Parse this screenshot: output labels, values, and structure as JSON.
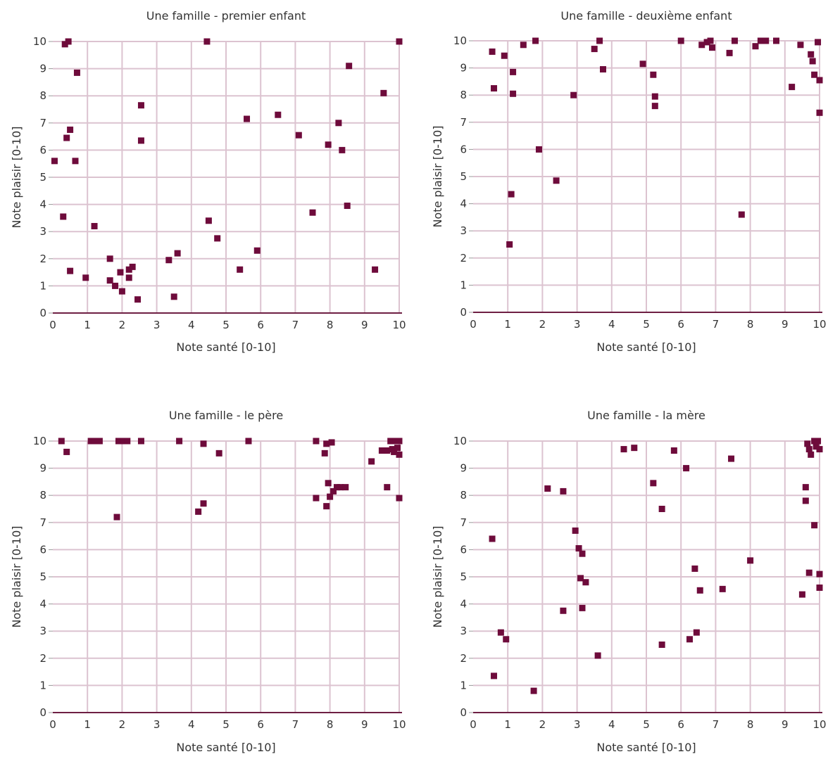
{
  "chart_data": [
    {
      "type": "scatter",
      "title": "Une famille - premier enfant",
      "xlabel": "Note santé [0-10]",
      "ylabel": "Note plaisir [0-10]",
      "xlim": [
        0,
        10
      ],
      "ylim": [
        0,
        10
      ],
      "xticks": [
        "0",
        "1",
        "2",
        "3",
        "4",
        "5",
        "6",
        "7",
        "8",
        "9",
        "10"
      ],
      "yticks": [
        "0",
        "1",
        "2",
        "3",
        "4",
        "5",
        "6",
        "7",
        "8",
        "9",
        "10"
      ],
      "grid": true,
      "marker_color": "#6e0b3b",
      "points": [
        {
          "x": 0.05,
          "y": 5.6
        },
        {
          "x": 0.35,
          "y": 9.9
        },
        {
          "x": 0.45,
          "y": 10.0
        },
        {
          "x": 0.7,
          "y": 8.85
        },
        {
          "x": 0.4,
          "y": 6.45
        },
        {
          "x": 0.5,
          "y": 6.75
        },
        {
          "x": 0.65,
          "y": 5.6
        },
        {
          "x": 0.3,
          "y": 3.55
        },
        {
          "x": 0.5,
          "y": 1.55
        },
        {
          "x": 0.95,
          "y": 1.3
        },
        {
          "x": 1.2,
          "y": 3.2
        },
        {
          "x": 1.65,
          "y": 2.0
        },
        {
          "x": 1.65,
          "y": 1.2
        },
        {
          "x": 1.8,
          "y": 1.0
        },
        {
          "x": 1.95,
          "y": 1.5
        },
        {
          "x": 2.0,
          "y": 0.8
        },
        {
          "x": 2.2,
          "y": 1.6
        },
        {
          "x": 2.2,
          "y": 1.3
        },
        {
          "x": 2.3,
          "y": 1.7
        },
        {
          "x": 2.45,
          "y": 0.5
        },
        {
          "x": 2.55,
          "y": 7.65
        },
        {
          "x": 2.55,
          "y": 6.35
        },
        {
          "x": 3.35,
          "y": 1.95
        },
        {
          "x": 3.5,
          "y": 0.6
        },
        {
          "x": 3.6,
          "y": 2.2
        },
        {
          "x": 4.45,
          "y": 10.0
        },
        {
          "x": 4.5,
          "y": 3.4
        },
        {
          "x": 4.75,
          "y": 2.75
        },
        {
          "x": 5.4,
          "y": 1.6
        },
        {
          "x": 5.6,
          "y": 7.15
        },
        {
          "x": 5.9,
          "y": 2.3
        },
        {
          "x": 6.5,
          "y": 7.3
        },
        {
          "x": 7.1,
          "y": 6.55
        },
        {
          "x": 7.5,
          "y": 3.7
        },
        {
          "x": 7.95,
          "y": 6.2
        },
        {
          "x": 8.25,
          "y": 7.0
        },
        {
          "x": 8.35,
          "y": 6.0
        },
        {
          "x": 8.5,
          "y": 3.95
        },
        {
          "x": 8.55,
          "y": 9.1
        },
        {
          "x": 9.3,
          "y": 1.6
        },
        {
          "x": 9.55,
          "y": 8.1
        },
        {
          "x": 10.0,
          "y": 10.0
        }
      ]
    },
    {
      "type": "scatter",
      "title": "Une famille - deuxième enfant",
      "xlabel": "Note santé [0-10]",
      "ylabel": "Note plaisir [0-10]",
      "xlim": [
        0,
        10
      ],
      "ylim": [
        0,
        10
      ],
      "xticks": [
        "0",
        "1",
        "2",
        "3",
        "4",
        "5",
        "6",
        "7",
        "8",
        "9",
        "10"
      ],
      "yticks": [
        "0",
        "1",
        "2",
        "3",
        "4",
        "5",
        "6",
        "7",
        "8",
        "9",
        "10"
      ],
      "grid": true,
      "marker_color": "#6e0b3b",
      "points": [
        {
          "x": 0.55,
          "y": 9.6
        },
        {
          "x": 0.6,
          "y": 8.25
        },
        {
          "x": 0.9,
          "y": 9.45
        },
        {
          "x": 1.05,
          "y": 2.5
        },
        {
          "x": 1.1,
          "y": 4.35
        },
        {
          "x": 1.15,
          "y": 8.05
        },
        {
          "x": 1.15,
          "y": 8.85
        },
        {
          "x": 1.45,
          "y": 9.85
        },
        {
          "x": 1.8,
          "y": 10.0
        },
        {
          "x": 1.9,
          "y": 6.0
        },
        {
          "x": 2.4,
          "y": 4.85
        },
        {
          "x": 2.9,
          "y": 8.0
        },
        {
          "x": 3.5,
          "y": 9.7
        },
        {
          "x": 3.65,
          "y": 10.0
        },
        {
          "x": 3.75,
          "y": 8.95
        },
        {
          "x": 4.9,
          "y": 9.15
        },
        {
          "x": 5.2,
          "y": 8.75
        },
        {
          "x": 5.25,
          "y": 7.6
        },
        {
          "x": 5.25,
          "y": 7.95
        },
        {
          "x": 6.0,
          "y": 10.0
        },
        {
          "x": 6.6,
          "y": 9.85
        },
        {
          "x": 6.75,
          "y": 9.95
        },
        {
          "x": 6.85,
          "y": 10.0
        },
        {
          "x": 6.9,
          "y": 9.75
        },
        {
          "x": 7.4,
          "y": 9.55
        },
        {
          "x": 7.55,
          "y": 10.0
        },
        {
          "x": 7.75,
          "y": 3.6
        },
        {
          "x": 8.15,
          "y": 9.8
        },
        {
          "x": 8.3,
          "y": 10.0
        },
        {
          "x": 8.45,
          "y": 10.0
        },
        {
          "x": 8.75,
          "y": 10.0
        },
        {
          "x": 9.2,
          "y": 8.3
        },
        {
          "x": 9.45,
          "y": 9.85
        },
        {
          "x": 9.75,
          "y": 9.5
        },
        {
          "x": 9.8,
          "y": 9.25
        },
        {
          "x": 9.85,
          "y": 8.75
        },
        {
          "x": 9.95,
          "y": 9.95
        },
        {
          "x": 10.0,
          "y": 8.55
        },
        {
          "x": 10.0,
          "y": 7.35
        }
      ]
    },
    {
      "type": "scatter",
      "title": "Une famille - le père",
      "xlabel": "Note santé [0-10]",
      "ylabel": "Note plaisir [0-10]",
      "xlim": [
        0,
        10
      ],
      "ylim": [
        0,
        10
      ],
      "xticks": [
        "0",
        "1",
        "2",
        "3",
        "4",
        "5",
        "6",
        "7",
        "8",
        "9",
        "10"
      ],
      "yticks": [
        "0",
        "1",
        "2",
        "3",
        "4",
        "5",
        "6",
        "7",
        "8",
        "9",
        "10"
      ],
      "grid": true,
      "marker_color": "#6e0b3b",
      "points": [
        {
          "x": 0.25,
          "y": 10.0
        },
        {
          "x": 0.4,
          "y": 9.6
        },
        {
          "x": 1.1,
          "y": 10.0
        },
        {
          "x": 1.2,
          "y": 10.0
        },
        {
          "x": 1.35,
          "y": 10.0
        },
        {
          "x": 1.85,
          "y": 7.2
        },
        {
          "x": 1.9,
          "y": 10.0
        },
        {
          "x": 2.05,
          "y": 10.0
        },
        {
          "x": 2.15,
          "y": 10.0
        },
        {
          "x": 2.55,
          "y": 10.0
        },
        {
          "x": 3.65,
          "y": 10.0
        },
        {
          "x": 4.2,
          "y": 7.4
        },
        {
          "x": 4.35,
          "y": 7.7
        },
        {
          "x": 4.35,
          "y": 9.9
        },
        {
          "x": 4.8,
          "y": 9.55
        },
        {
          "x": 5.65,
          "y": 10.0
        },
        {
          "x": 7.6,
          "y": 7.9
        },
        {
          "x": 7.6,
          "y": 10.0
        },
        {
          "x": 7.85,
          "y": 9.55
        },
        {
          "x": 7.9,
          "y": 7.6
        },
        {
          "x": 7.9,
          "y": 9.9
        },
        {
          "x": 7.95,
          "y": 8.45
        },
        {
          "x": 8.0,
          "y": 7.95
        },
        {
          "x": 8.05,
          "y": 9.95
        },
        {
          "x": 8.1,
          "y": 8.15
        },
        {
          "x": 8.2,
          "y": 8.3
        },
        {
          "x": 8.3,
          "y": 8.3
        },
        {
          "x": 8.45,
          "y": 8.3
        },
        {
          "x": 9.2,
          "y": 9.25
        },
        {
          "x": 9.5,
          "y": 9.65
        },
        {
          "x": 9.65,
          "y": 9.65
        },
        {
          "x": 9.65,
          "y": 8.3
        },
        {
          "x": 9.75,
          "y": 10.0
        },
        {
          "x": 9.8,
          "y": 9.7
        },
        {
          "x": 9.85,
          "y": 9.6
        },
        {
          "x": 9.9,
          "y": 10.0
        },
        {
          "x": 9.95,
          "y": 9.75
        },
        {
          "x": 10.0,
          "y": 9.5
        },
        {
          "x": 10.0,
          "y": 7.9
        },
        {
          "x": 10.0,
          "y": 10.0
        }
      ]
    },
    {
      "type": "scatter",
      "title": "Une famille - la mère",
      "xlabel": "Note santé [0-10]",
      "ylabel": "Note plaisir [0-10]",
      "xlim": [
        0,
        10
      ],
      "ylim": [
        0,
        10
      ],
      "xticks": [
        "0",
        "1",
        "2",
        "3",
        "4",
        "5",
        "6",
        "7",
        "8",
        "9",
        "10"
      ],
      "yticks": [
        "0",
        "1",
        "2",
        "3",
        "4",
        "5",
        "6",
        "7",
        "8",
        "9",
        "10"
      ],
      "grid": true,
      "marker_color": "#6e0b3b",
      "points": [
        {
          "x": 0.55,
          "y": 6.4
        },
        {
          "x": 0.6,
          "y": 1.35
        },
        {
          "x": 0.8,
          "y": 2.95
        },
        {
          "x": 0.95,
          "y": 2.7
        },
        {
          "x": 1.75,
          "y": 0.8
        },
        {
          "x": 2.15,
          "y": 8.25
        },
        {
          "x": 2.6,
          "y": 8.15
        },
        {
          "x": 2.6,
          "y": 3.75
        },
        {
          "x": 2.95,
          "y": 6.7
        },
        {
          "x": 3.05,
          "y": 6.05
        },
        {
          "x": 3.1,
          "y": 4.95
        },
        {
          "x": 3.15,
          "y": 5.85
        },
        {
          "x": 3.15,
          "y": 3.85
        },
        {
          "x": 3.25,
          "y": 4.8
        },
        {
          "x": 3.6,
          "y": 2.1
        },
        {
          "x": 4.35,
          "y": 9.7
        },
        {
          "x": 4.65,
          "y": 9.75
        },
        {
          "x": 5.2,
          "y": 8.45
        },
        {
          "x": 5.45,
          "y": 7.5
        },
        {
          "x": 5.45,
          "y": 2.5
        },
        {
          "x": 5.8,
          "y": 9.65
        },
        {
          "x": 6.15,
          "y": 9.0
        },
        {
          "x": 6.25,
          "y": 2.7
        },
        {
          "x": 6.4,
          "y": 5.3
        },
        {
          "x": 6.45,
          "y": 2.95
        },
        {
          "x": 6.55,
          "y": 4.5
        },
        {
          "x": 7.2,
          "y": 4.55
        },
        {
          "x": 7.45,
          "y": 9.35
        },
        {
          "x": 8.0,
          "y": 5.6
        },
        {
          "x": 9.5,
          "y": 4.35
        },
        {
          "x": 9.6,
          "y": 8.3
        },
        {
          "x": 9.6,
          "y": 7.8
        },
        {
          "x": 9.65,
          "y": 9.9
        },
        {
          "x": 9.7,
          "y": 9.7
        },
        {
          "x": 9.7,
          "y": 5.15
        },
        {
          "x": 9.75,
          "y": 9.5
        },
        {
          "x": 9.85,
          "y": 10.0
        },
        {
          "x": 9.85,
          "y": 6.9
        },
        {
          "x": 9.9,
          "y": 9.8
        },
        {
          "x": 9.95,
          "y": 10.0
        },
        {
          "x": 10.0,
          "y": 9.7
        },
        {
          "x": 10.0,
          "y": 5.1
        },
        {
          "x": 10.0,
          "y": 4.6
        }
      ]
    }
  ]
}
